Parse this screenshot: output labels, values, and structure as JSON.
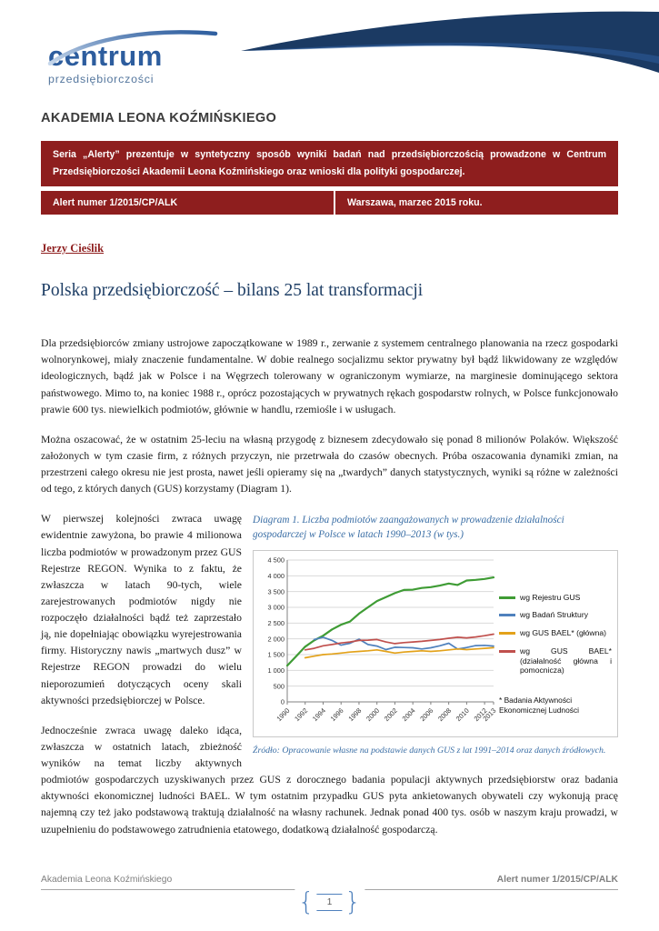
{
  "logo": {
    "word": "centrum",
    "subword": "przedsiębiorczości"
  },
  "header": {
    "university": "AKADEMIA LEONA KOŹMIŃSKIEGO"
  },
  "alert_banner": {
    "series_note": "Seria „Alerty” prezentuje w syntetyczny sposób wyniki badań nad przedsiębiorczością prowadzone w Centrum Przedsiębiorczości Akademii Leona Koźmińskiego oraz wnioski dla polityki gospodarczej.",
    "alert_number": "Alert numer 1/2015/CP/ALK",
    "place_date": "Warszawa, marzec 2015 roku."
  },
  "article": {
    "author": "Jerzy Cieślik",
    "title": "Polska przedsiębiorczość – bilans 25 lat transformacji",
    "paragraphs": [
      "Dla przedsiębiorców zmiany ustrojowe zapoczątkowane w 1989 r., zerwanie z systemem centralnego planowania na rzecz gospodarki wolnorynkowej,  miały znaczenie fundamentalne. W dobie realnego socjalizmu sektor prywatny był bądź likwidowany ze względów ideologicznych, bądź jak w Polsce i na Węgrzech tolerowany w ograniczonym wymiarze, na marginesie dominującego sektora państwowego. Mimo to, na koniec 1988 r., oprócz pozostających w prywatnych rękach gospodarstw rolnych, w Polsce funkcjonowało prawie 600 tys. niewielkich podmiotów, głównie w handlu, rzemiośle i w usługach.",
      "Można oszacować, że w ostatnim 25-leciu  na własną przygodę z biznesem zdecydowało się ponad 8 milionów Polaków. Większość założonych w tym czasie firm, z różnych przyczyn, nie przetrwała do czasów obecnych. Próba oszacowania dynamiki zmian, na przestrzeni całego okresu nie jest prosta, nawet jeśli opieramy się na „twardych” danych statystycznych, wyniki są różne w zależności od tego, z których danych (GUS) korzystamy (Diagram 1).",
      "W pierwszej kolejności zwraca uwagę ewidentnie zawyżona, bo prawie 4 milionowa liczba podmiotów w prowadzonym przez GUS Rejestrze REGON. Wynika to z faktu, że zwłaszcza w latach 90-tych, wiele zarejestrowanych podmiotów nigdy nie rozpoczęło działalności bądź też zaprzestało ją, nie dopełniając obowiązku wyrejestrowania firmy. Historyczny nawis „martwych dusz” w Rejestrze REGON prowadzi do wielu nieporozumień dotyczących oceny skali aktywności przedsiębiorczej w Polsce.",
      "Jednocześnie zwraca uwagę daleko idąca, zwłaszcza w ostatnich latach, zbieżność wyników na temat liczby aktywnych podmiotów gospodarczych uzyskiwanych przez GUS z dorocznego badania populacji aktywnych przedsiębiorstw oraz badania aktywności ekonomicznej ludności BAEL. W tym ostatnim przypadku GUS pyta ankietowanych obywateli czy wykonują pracę najemną czy też jako podstawową traktują działalność na własny rachunek. Jednak ponad 400 tys. osób w naszym kraju prowadzi, w uzupełnieniu do podstawowego zatrudnienia etatowego, dodatkową działalność gospodarczą."
    ]
  },
  "figure": {
    "caption": "Diagram 1. Liczba podmiotów zaangażowanych w prowadzenie działalności gospodarczej w Polsce w latach 1990–2013 (w tys.)",
    "source": "Źródło: Opracowanie własne na podstawie danych GUS z lat 1991–2014 oraz danych źródłowych.",
    "legend_footnote_line1": "* Badania Aktywności",
    "legend_footnote_line2": "Ekonomicznej Ludności"
  },
  "chart_data": {
    "type": "line",
    "title": "",
    "xlabel": "",
    "ylabel": "",
    "unit": "tys.",
    "grid": true,
    "legend_position": "right",
    "x_range": [
      1990,
      2013
    ],
    "ylim": [
      0,
      4500
    ],
    "x": [
      1990,
      1991,
      1992,
      1993,
      1994,
      1995,
      1996,
      1997,
      1998,
      1999,
      2000,
      2001,
      2002,
      2003,
      2004,
      2005,
      2006,
      2007,
      2008,
      2009,
      2010,
      2011,
      2012,
      2013
    ],
    "x_ticks": [
      1990,
      1992,
      1994,
      1996,
      1998,
      2000,
      2002,
      2004,
      2006,
      2008,
      2010,
      2012,
      2013
    ],
    "y_ticks": [
      {
        "value": 0,
        "label": "0"
      },
      {
        "value": 500,
        "label": "500"
      },
      {
        "value": 1000,
        "label": "1 000"
      },
      {
        "value": 1500,
        "label": "1 500"
      },
      {
        "value": 2000,
        "label": "2 000"
      },
      {
        "value": 2500,
        "label": "2 500"
      },
      {
        "value": 3000,
        "label": "3 000"
      },
      {
        "value": 3500,
        "label": "3 500"
      },
      {
        "value": 4000,
        "label": "4 000"
      },
      {
        "value": 4500,
        "label": "4 500"
      }
    ],
    "series": [
      {
        "name": "wg Rejestru GUS",
        "color": "#3f9c35",
        "values": [
          1150,
          1450,
          1750,
          1950,
          2100,
          2300,
          2450,
          2550,
          2800,
          3000,
          3200,
          3325,
          3450,
          3550,
          3560,
          3615,
          3640,
          3690,
          3755,
          3710,
          3850,
          3870,
          3900,
          3950
        ]
      },
      {
        "name": "wg Badań Struktury",
        "color": "#4f81bd",
        "values": [
          null,
          null,
          null,
          1980,
          2050,
          1950,
          1800,
          1860,
          1990,
          1820,
          1770,
          1660,
          1735,
          1725,
          1715,
          1680,
          1715,
          1780,
          1860,
          1675,
          1725,
          1785,
          1795,
          1770
        ]
      },
      {
        "name": "wg GUS BAEL* (główna)",
        "color": "#e3a21a",
        "values": [
          null,
          null,
          1400,
          1450,
          1500,
          1520,
          1550,
          1580,
          1600,
          1620,
          1650,
          1600,
          1550,
          1580,
          1600,
          1620,
          1600,
          1620,
          1650,
          1680,
          1660,
          1680,
          1700,
          1720
        ]
      },
      {
        "name": "wg GUS BAEL* (działalność główna i pomocnicza)",
        "color": "#c0504d",
        "values": [
          null,
          null,
          1650,
          1700,
          1780,
          1820,
          1870,
          1900,
          1950,
          1960,
          1980,
          1900,
          1850,
          1880,
          1900,
          1920,
          1950,
          1980,
          2020,
          2050,
          2030,
          2060,
          2100,
          2150
        ]
      }
    ]
  },
  "footer": {
    "left": "Akademia Leona Koźmińskiego",
    "right": "Alert numer 1/2015/CP/ALK",
    "page_number": "1",
    "brace_left": "{",
    "brace_right": "}"
  },
  "colors": {
    "banner_red": "#8e1e1e",
    "title_navy": "#1f3f66",
    "caption_blue": "#3a6ea5",
    "deco_navy": "#1b3a63",
    "logo_blue": "#2d5d9e"
  }
}
